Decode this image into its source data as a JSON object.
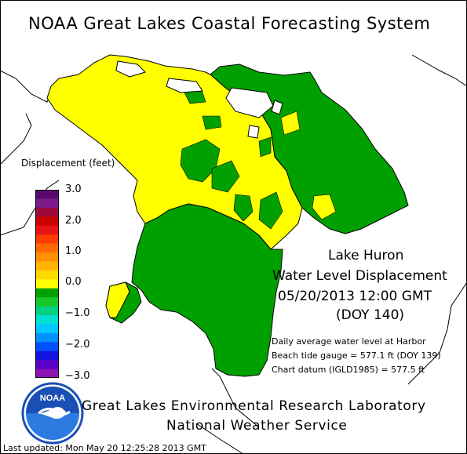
{
  "header": {
    "title": "NOAA Great Lakes Coastal Forecasting System"
  },
  "legend": {
    "title": "Displacement (feet)",
    "ticks": [
      "3.0",
      "2.0",
      "1.0",
      "0.0",
      "−1.0",
      "−2.0",
      "−3.0"
    ],
    "colors": [
      "#5a0a6e",
      "#7a1a8c",
      "#9c0a3a",
      "#c80000",
      "#e81414",
      "#ff3c00",
      "#ff6a00",
      "#ff9000",
      "#ffb400",
      "#ffd800",
      "#ffff00",
      "#00a000",
      "#16c828",
      "#00d080",
      "#00e0d0",
      "#00c8ff",
      "#0090ff",
      "#0050ff",
      "#1414e0",
      "#5a00c8",
      "#8c14b4"
    ]
  },
  "map": {
    "lake_name": "Lake Huron",
    "subtitle": "Water Level Displacement",
    "datetime": "05/20/2013 12:00 GMT",
    "doy": "(DOY 140)",
    "colors": {
      "positive": "#ffff00",
      "negative": "#00a000",
      "land": "#ffffff",
      "outline": "#000000"
    }
  },
  "notes": {
    "line1": "Daily average water level at Harbor",
    "line2": "Beach tide gauge = 577.1 ft (DOY 139)",
    "line3": "Chart datum (IGLD1985) = 577.5 ft"
  },
  "footer": {
    "lab": "Great Lakes Environmental Research Laboratory",
    "service": "National Weather Service",
    "last_updated": "Last updated: Mon May 20 12:25:28 2013 GMT",
    "logo_text": "NOAA"
  }
}
